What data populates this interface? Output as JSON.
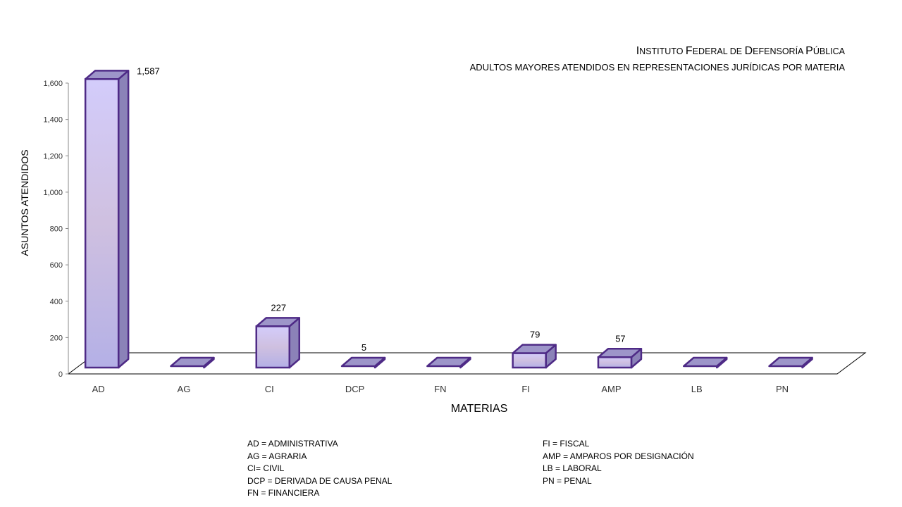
{
  "chart_data": {
    "type": "bar",
    "title_parts": [
      {
        "text": "I",
        "style": "big"
      },
      {
        "text": "NSTITUTO ",
        "style": "sc"
      },
      {
        "text": "F",
        "style": "big"
      },
      {
        "text": "EDERAL DE ",
        "style": "sc"
      },
      {
        "text": "D",
        "style": "big"
      },
      {
        "text": "EFENSORÍA ",
        "style": "sc"
      },
      {
        "text": "P",
        "style": "big"
      },
      {
        "text": "ÚBLICA",
        "style": "sc"
      }
    ],
    "subtitle": "ADULTOS MAYORES ATENDIDOS EN REPRESENTACIONES  JURÍDICAS POR MATERIA",
    "xlabel": "MATERIAS",
    "ylabel": "ASUNTOS ATENDIDOS",
    "categories": [
      "AD",
      "AG",
      "CI",
      "DCP",
      "FN",
      "FI",
      "AMP",
      "LB",
      "PN"
    ],
    "values": [
      1587,
      0,
      227,
      5,
      0,
      79,
      57,
      0,
      0
    ],
    "data_labels": [
      "1,587",
      "",
      "227",
      "5",
      "",
      "79",
      "57",
      "",
      ""
    ],
    "ylim": [
      0,
      1600
    ],
    "yticks": [
      0,
      200,
      400,
      600,
      800,
      1000,
      1200,
      1400,
      1600
    ],
    "ytick_labels": [
      "0",
      "200",
      "400",
      "600",
      "800",
      "1,000",
      "1,200",
      "1,400",
      "1,600"
    ],
    "grid": false,
    "legend": false,
    "colors": {
      "bar_front_top": "#d3ccfb",
      "bar_front_bottom": "#b4b0e6",
      "bar_top": "#9d95c9",
      "bar_side": "#8b82b8",
      "bar_outline": "#4e2a86",
      "floor": "#ffffff",
      "axis": "#000000"
    }
  },
  "legend_left": [
    "AD = ADMINISTRATIVA",
    "AG = AGRARIA",
    "CI= CIVIL",
    "DCP =  DERIVADA DE CAUSA  PENAL",
    "FN = FINANCIERA"
  ],
  "legend_right": [
    "FI = FISCAL",
    "AMP = AMPAROS POR DESIGNACIÓN",
    "LB = LABORAL",
    "PN = PENAL"
  ]
}
